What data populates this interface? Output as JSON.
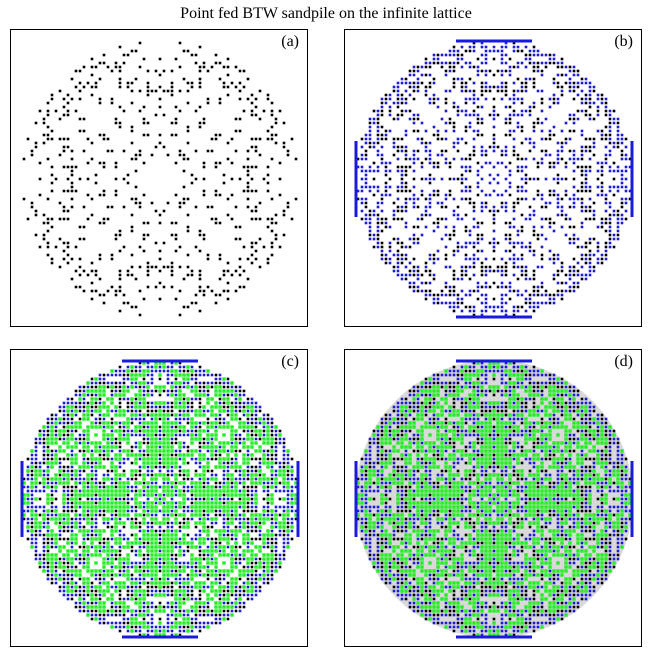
{
  "title": "Point fed BTW sandpile on the infinite lattice",
  "panels": [
    {
      "id": "a",
      "label": "(a)",
      "layers": [
        "black"
      ]
    },
    {
      "id": "b",
      "label": "(b)",
      "layers": [
        "blue",
        "black"
      ]
    },
    {
      "id": "c",
      "label": "(c)",
      "layers": [
        "green",
        "blue",
        "black"
      ]
    },
    {
      "id": "d",
      "label": "(d)",
      "layers": [
        "grey",
        "green",
        "blue",
        "black"
      ]
    }
  ],
  "colors": {
    "black": "#000000",
    "blue": "#1a1adc",
    "green": "#22ee22",
    "grey": "#d9d9d9"
  }
}
